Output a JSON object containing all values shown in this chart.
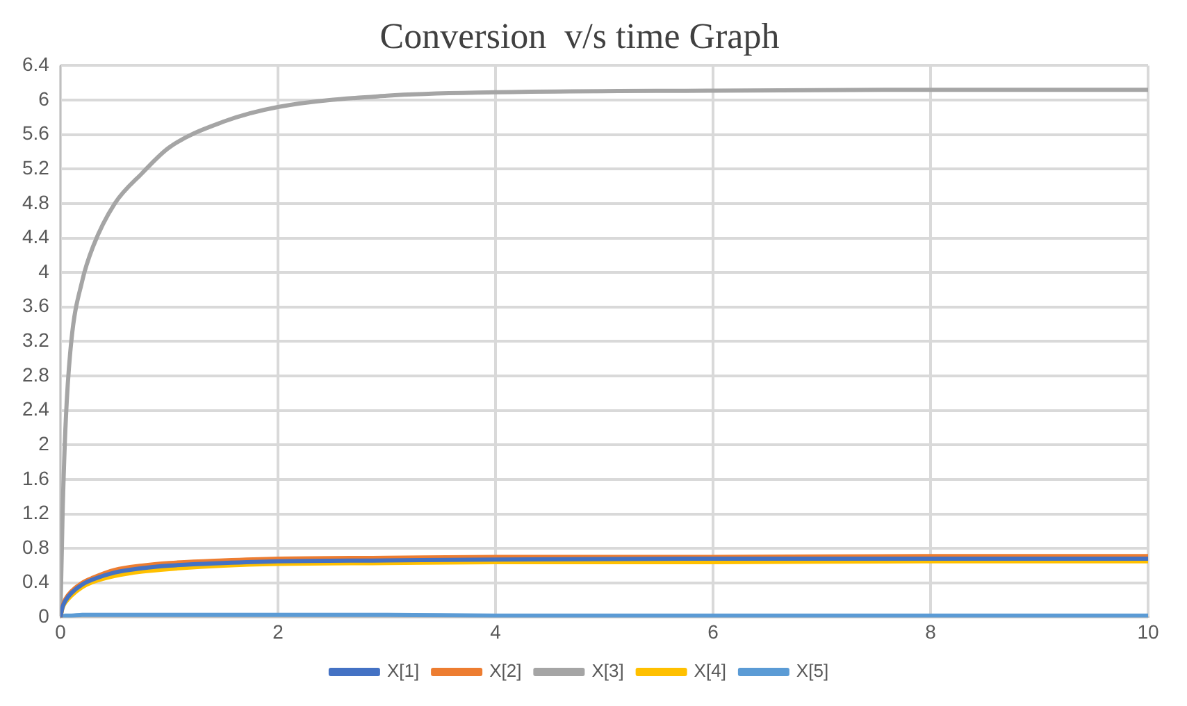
{
  "chart_data": {
    "type": "line",
    "title": "Conversion  v/s time Graph",
    "xlim": [
      0,
      10
    ],
    "xticks": [
      0,
      2,
      4,
      6,
      8,
      10
    ],
    "ylim": [
      0,
      6.4
    ],
    "yticks": [
      0,
      0.4,
      0.8,
      1.2,
      1.6,
      2,
      2.4,
      2.8,
      3.2,
      3.6,
      4,
      4.4,
      4.8,
      5.2,
      5.6,
      6,
      6.4
    ],
    "grid": true,
    "legend": "bottom",
    "marker": "none",
    "line_style": "solid",
    "x": [
      0,
      0.02,
      0.05,
      0.1,
      0.2,
      0.3,
      0.5,
      0.75,
      1,
      1.5,
      2,
      3,
      4,
      6,
      8,
      10
    ],
    "series": [
      {
        "name": "X[1]",
        "color": "#4472c4",
        "values": [
          0,
          0.12,
          0.2,
          0.28,
          0.38,
          0.44,
          0.52,
          0.57,
          0.6,
          0.63,
          0.65,
          0.66,
          0.67,
          0.68,
          0.68,
          0.68
        ]
      },
      {
        "name": "X[2]",
        "color": "#ed7d31",
        "values": [
          0,
          0.13,
          0.22,
          0.3,
          0.4,
          0.46,
          0.55,
          0.6,
          0.63,
          0.66,
          0.68,
          0.69,
          0.7,
          0.7,
          0.71,
          0.71
        ]
      },
      {
        "name": "X[3]",
        "color": "#a5a5a5",
        "values": [
          0,
          1.2,
          2.3,
          3.2,
          3.9,
          4.3,
          4.8,
          5.15,
          5.45,
          5.75,
          5.92,
          6.05,
          6.09,
          6.11,
          6.12,
          6.12
        ]
      },
      {
        "name": "X[4]",
        "color": "#ffc000",
        "values": [
          0,
          0.11,
          0.18,
          0.25,
          0.35,
          0.41,
          0.48,
          0.53,
          0.56,
          0.6,
          0.62,
          0.63,
          0.64,
          0.64,
          0.65,
          0.65
        ]
      },
      {
        "name": "X[5]",
        "color": "#5b9bd5",
        "values": [
          0,
          0.01,
          0.02,
          0.02,
          0.03,
          0.03,
          0.03,
          0.03,
          0.03,
          0.03,
          0.03,
          0.03,
          0.02,
          0.02,
          0.02,
          0.02
        ]
      }
    ]
  }
}
